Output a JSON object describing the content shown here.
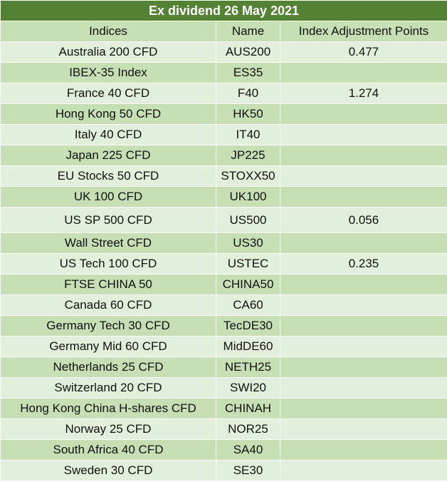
{
  "title": "Ex dividend 26 May 2021",
  "headers": {
    "indices": "Indices",
    "name": "Name",
    "points": "Index Adjustment Points"
  },
  "rows": [
    {
      "index": "Australia 200 CFD",
      "name": "AUS200",
      "points": "0.477"
    },
    {
      "index": "IBEX-35 Index",
      "name": "ES35",
      "points": ""
    },
    {
      "index": "France 40 CFD",
      "name": "F40",
      "points": "1.274"
    },
    {
      "index": "Hong Kong 50 CFD",
      "name": "HK50",
      "points": ""
    },
    {
      "index": "Italy 40 CFD",
      "name": "IT40",
      "points": ""
    },
    {
      "index": "Japan 225 CFD",
      "name": "JP225",
      "points": ""
    },
    {
      "index": "EU Stocks 50 CFD",
      "name": "STOXX50",
      "points": ""
    },
    {
      "index": "UK 100 CFD",
      "name": "UK100",
      "points": ""
    },
    {
      "index": "US SP 500 CFD",
      "name": "US500",
      "points": "0.056"
    },
    {
      "index": "Wall Street CFD",
      "name": "US30",
      "points": ""
    },
    {
      "index": "US Tech 100 CFD",
      "name": "USTEC",
      "points": "0.235"
    },
    {
      "index": "FTSE CHINA 50",
      "name": "CHINA50",
      "points": ""
    },
    {
      "index": "Canada 60 CFD",
      "name": "CA60",
      "points": ""
    },
    {
      "index": "Germany Tech 30 CFD",
      "name": "TecDE30",
      "points": ""
    },
    {
      "index": "Germany Mid 60 CFD",
      "name": "MidDE60",
      "points": ""
    },
    {
      "index": "Netherlands 25 CFD",
      "name": "NETH25",
      "points": ""
    },
    {
      "index": "Switzerland 20 CFD",
      "name": "SWI20",
      "points": ""
    },
    {
      "index": "Hong Kong China H-shares CFD",
      "name": "CHINAH",
      "points": ""
    },
    {
      "index": "Norway 25 CFD",
      "name": "NOR25",
      "points": ""
    },
    {
      "index": "South Africa 40 CFD",
      "name": "SA40",
      "points": ""
    },
    {
      "index": "Sweden 30 CFD",
      "name": "SE30",
      "points": ""
    }
  ],
  "colors": {
    "title_bg": "#548235",
    "band_light": "#e2efda",
    "band_dark": "#c6dfb4"
  }
}
